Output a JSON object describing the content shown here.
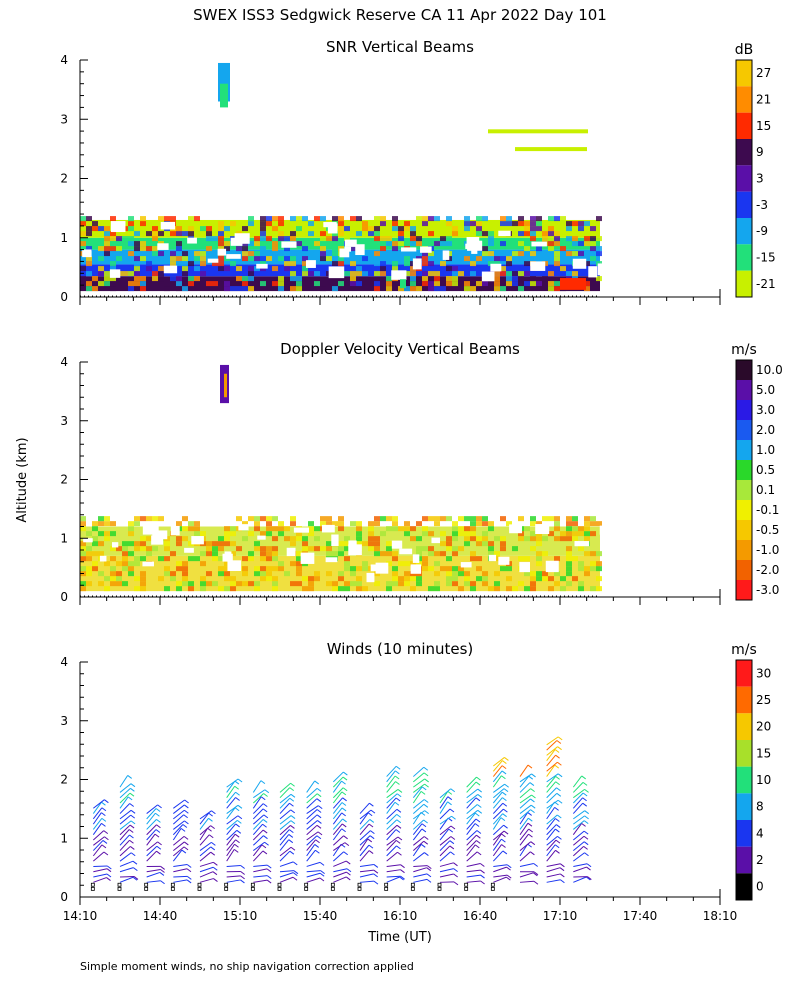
{
  "title": "SWEX ISS3 Sedgwick Reserve CA  11 Apr 2022 Day 101",
  "y_axis_label": "Altitude (km)",
  "x_axis_label": "Time (UT)",
  "footnote": "Simple moment winds, no ship navigation correction applied",
  "chart_data": [
    {
      "type": "heatmap",
      "title": "SNR Vertical Beams",
      "xlabel": "Time (UT)",
      "ylabel": "Altitude (km)",
      "x_ticks": [
        "14:10",
        "14:40",
        "15:10",
        "15:40",
        "16:10",
        "16:40",
        "17:10",
        "17:40",
        "18:10"
      ],
      "y_ticks": [
        "0",
        "1",
        "2",
        "3",
        "4"
      ],
      "ylim": [
        0,
        4
      ],
      "colorbar": {
        "unit": "dB",
        "labels": [
          "27",
          "21",
          "15",
          "9",
          "3",
          "-3",
          "-9",
          "-15",
          "-21"
        ],
        "colors": [
          "#f6c800",
          "#ff8c00",
          "#ff2a00",
          "#3d0a4f",
          "#5a0fa8",
          "#1a36f0",
          "#14a6ee",
          "#22e07a",
          "#c8f000"
        ]
      },
      "layers": [
        {
          "altitude_km": [
            0.1,
            0.35
          ],
          "color": "#3d0a4f"
        },
        {
          "altitude_km": [
            0.35,
            0.55
          ],
          "color": "#1a36f0"
        },
        {
          "altitude_km": [
            0.55,
            0.8
          ],
          "color": "#14a6ee"
        },
        {
          "altitude_km": [
            0.8,
            1.0
          ],
          "color": "#22e07a"
        },
        {
          "altitude_km": [
            1.0,
            1.3
          ],
          "color": "#c8f000"
        }
      ]
    },
    {
      "type": "heatmap",
      "title": "Doppler Velocity Vertical Beams",
      "xlabel": "Time (UT)",
      "ylabel": "Altitude (km)",
      "x_ticks": [
        "14:10",
        "14:40",
        "15:10",
        "15:40",
        "16:10",
        "16:40",
        "17:10",
        "17:40",
        "18:10"
      ],
      "y_ticks": [
        "0",
        "1",
        "2",
        "3",
        "4"
      ],
      "ylim": [
        0,
        4
      ],
      "colorbar": {
        "unit": "m/s",
        "labels": [
          "10.0",
          "5.0",
          "3.0",
          "2.0",
          "1.0",
          "0.5",
          "0.1",
          "-0.1",
          "-0.5",
          "-1.0",
          "-2.0",
          "-3.0"
        ],
        "colors": [
          "#2a0a2a",
          "#5a0fa8",
          "#2a1ae6",
          "#1a5af0",
          "#14a6ee",
          "#2ad82a",
          "#a8e83a",
          "#f0f000",
          "#f6c800",
          "#f49a00",
          "#f26200",
          "#ff1a1a"
        ]
      },
      "layers": [
        {
          "altitude_km": [
            0.1,
            0.7
          ],
          "color": "#f0e040"
        },
        {
          "altitude_km": [
            0.7,
            1.2
          ],
          "color": "#d8ea50"
        }
      ]
    },
    {
      "type": "scatter",
      "title": "Winds (10 minutes)",
      "xlabel": "Time (UT)",
      "ylabel": "Altitude (km)",
      "x_ticks": [
        "14:10",
        "14:40",
        "15:10",
        "15:40",
        "16:10",
        "16:40",
        "17:10",
        "17:40",
        "18:10"
      ],
      "y_ticks": [
        "0",
        "1",
        "2",
        "3",
        "4"
      ],
      "ylim": [
        0,
        4
      ],
      "colorbar": {
        "unit": "m/s",
        "labels": [
          "30",
          "25",
          "20",
          "15",
          "10",
          "8",
          "4",
          "2",
          "0"
        ],
        "colors": [
          "#ff1a1a",
          "#ff6a00",
          "#f6c800",
          "#a8e02a",
          "#22e07a",
          "#14a6ee",
          "#1a36f0",
          "#5a0fa8",
          "#000000"
        ]
      },
      "profiles_time_ut": [
        "14:15",
        "14:25",
        "14:35",
        "14:45",
        "14:55",
        "15:05",
        "15:15",
        "15:25",
        "15:35",
        "15:45",
        "15:55",
        "16:05",
        "16:15",
        "16:25",
        "16:35",
        "16:45",
        "16:55",
        "17:05",
        "17:15"
      ],
      "profile_top_km": [
        1.6,
        1.9,
        1.5,
        1.6,
        1.4,
        1.9,
        1.8,
        1.8,
        1.8,
        2.0,
        1.5,
        2.1,
        2.1,
        1.7,
        1.9,
        2.3,
        2.1,
        2.6,
        1.9
      ]
    }
  ]
}
